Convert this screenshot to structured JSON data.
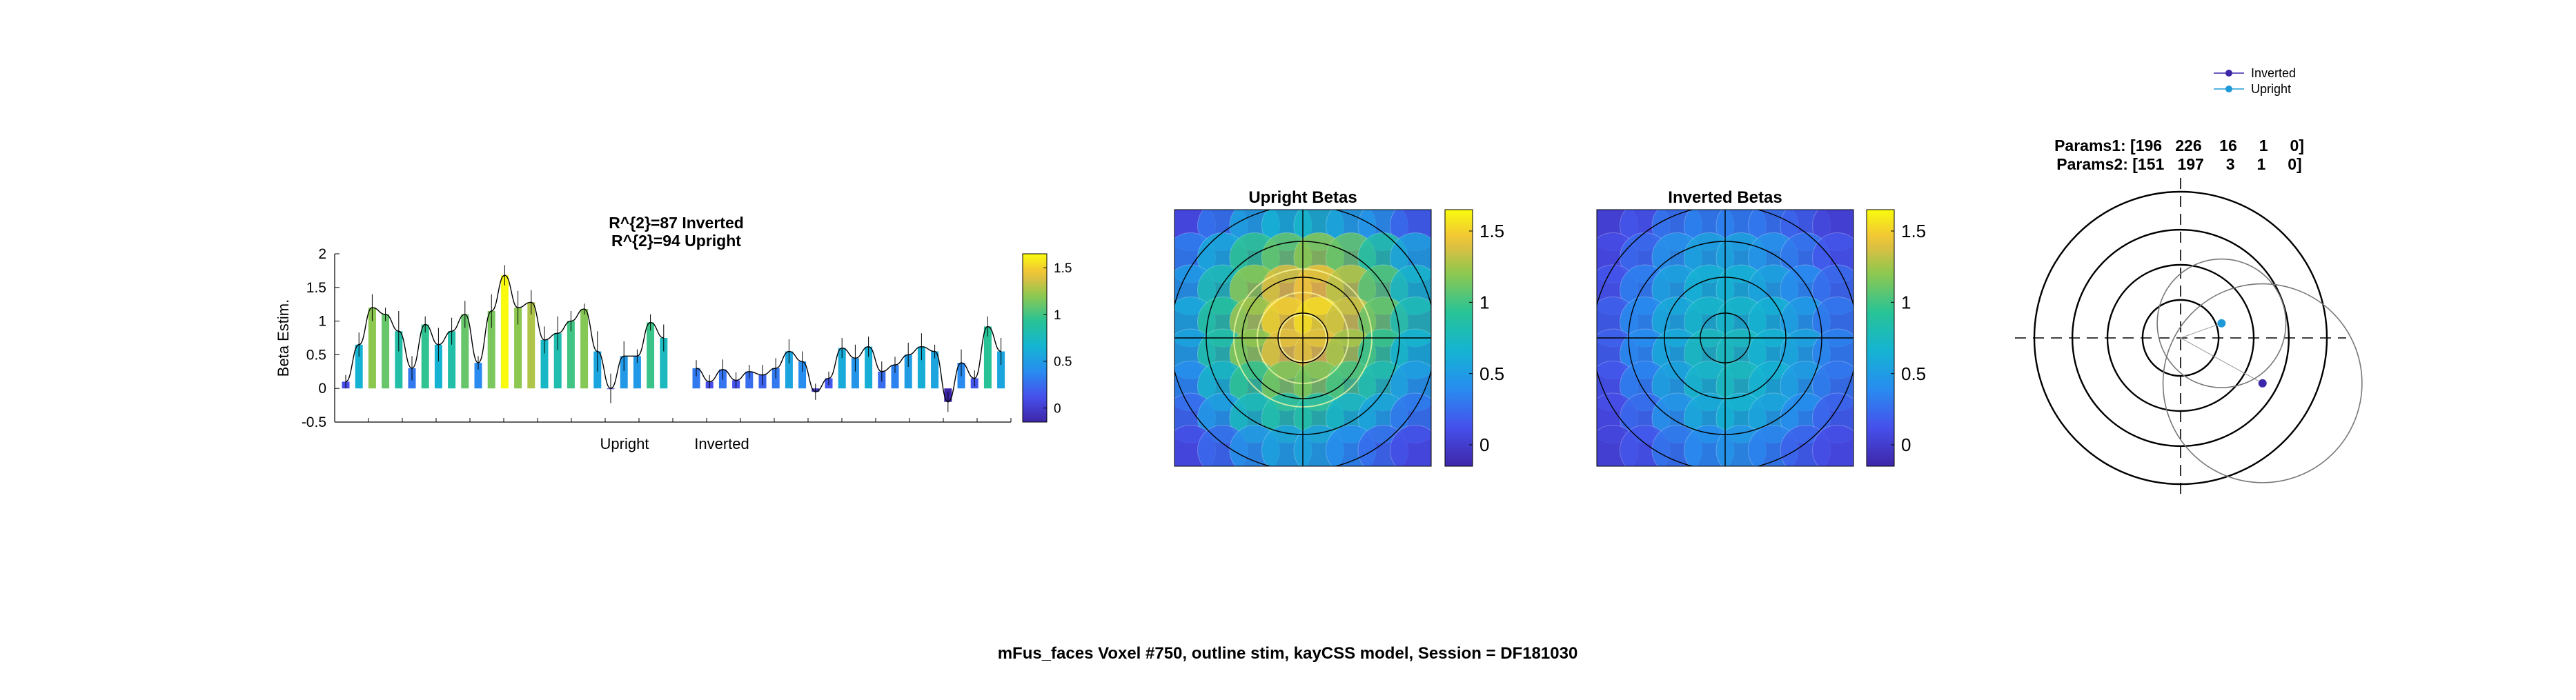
{
  "figure": {
    "suptitle": "mFus_faces Voxel #750, outline stim, kayCSS model, Session = DF181030"
  },
  "chart_data": [
    {
      "type": "bar",
      "title_lines": [
        "R^{2}=87 Inverted",
        "R^{2}=94 Upright"
      ],
      "ylabel": "Beta Estim.",
      "ylim": [
        -0.5,
        2
      ],
      "yticks": [
        "2",
        "1.5",
        "1",
        "0.5",
        "0",
        "-0.5"
      ],
      "xlabels": [
        "Upright",
        "Inverted"
      ],
      "colorbar_ticks": [
        "1.5",
        "1",
        "0.5",
        "0"
      ],
      "colorbar_range": [
        -0.15,
        1.65
      ],
      "series": [
        {
          "values": [
            0.1,
            0.65,
            1.2,
            1.1,
            0.85,
            0.3,
            0.95,
            0.65,
            0.85,
            1.1,
            0.38,
            1.15,
            1.68,
            1.2,
            1.28,
            0.72,
            0.82,
            1.0,
            1.18,
            0.55,
            0.0,
            0.48,
            0.48,
            0.98,
            0.75
          ],
          "errors": [
            0.1,
            0.18,
            0.2,
            0.1,
            0.3,
            0.18,
            0.12,
            0.25,
            0.2,
            0.2,
            0.1,
            0.25,
            0.15,
            0.25,
            0.18,
            0.2,
            0.25,
            0.15,
            0.08,
            0.3,
            0.22,
            0.22,
            0.1,
            0.12,
            0.2
          ]
        },
        {
          "values": [
            0.3,
            0.1,
            0.28,
            0.12,
            0.25,
            0.2,
            0.3,
            0.55,
            0.4,
            -0.05,
            0.15,
            0.6,
            0.45,
            0.62,
            0.25,
            0.35,
            0.5,
            0.62,
            0.55,
            -0.2,
            0.38,
            0.15,
            0.92,
            0.55
          ],
          "errors": [
            0.12,
            0.1,
            0.15,
            0.12,
            0.1,
            0.15,
            0.15,
            0.18,
            0.15,
            0.12,
            0.1,
            0.15,
            0.2,
            0.15,
            0.15,
            0.12,
            0.18,
            0.2,
            0.1,
            0.15,
            0.2,
            0.12,
            0.15,
            0.2
          ]
        }
      ]
    },
    {
      "type": "heatmap",
      "title": "Upright Betas",
      "colorbar_ticks": [
        "1.5",
        "1",
        "0.5",
        "0"
      ],
      "colorbar_range": [
        -0.15,
        1.65
      ],
      "grid": [
        [
          0.1,
          0.3,
          0.55,
          0.65,
          0.7,
          0.55,
          0.45,
          0.2
        ],
        [
          0.35,
          0.6,
          0.95,
          1.1,
          1.2,
          1.1,
          0.85,
          0.55
        ],
        [
          0.5,
          0.8,
          1.2,
          1.4,
          1.45,
          1.3,
          1.05,
          0.7
        ],
        [
          0.6,
          0.9,
          1.25,
          1.5,
          1.55,
          1.35,
          1.1,
          0.8
        ],
        [
          0.55,
          0.85,
          1.2,
          1.4,
          1.4,
          1.25,
          0.95,
          0.65
        ],
        [
          0.4,
          0.7,
          0.95,
          1.15,
          1.15,
          1.0,
          0.8,
          0.5
        ],
        [
          0.25,
          0.5,
          0.75,
          0.85,
          0.85,
          0.7,
          0.55,
          0.3
        ],
        [
          0.1,
          0.25,
          0.45,
          0.55,
          0.55,
          0.4,
          0.25,
          0.1
        ]
      ]
    },
    {
      "type": "heatmap",
      "title": "Inverted Betas",
      "colorbar_ticks": [
        "1.5",
        "1",
        "0.5",
        "0"
      ],
      "colorbar_range": [
        -0.15,
        1.65
      ],
      "grid": [
        [
          0.05,
          0.15,
          0.3,
          0.35,
          0.35,
          0.3,
          0.2,
          0.05
        ],
        [
          0.1,
          0.25,
          0.45,
          0.55,
          0.55,
          0.45,
          0.3,
          0.15
        ],
        [
          0.15,
          0.35,
          0.55,
          0.65,
          0.65,
          0.55,
          0.4,
          0.25
        ],
        [
          0.2,
          0.4,
          0.6,
          0.7,
          0.7,
          0.65,
          0.5,
          0.3
        ],
        [
          0.2,
          0.4,
          0.6,
          0.75,
          0.75,
          0.65,
          0.55,
          0.35
        ],
        [
          0.15,
          0.35,
          0.55,
          0.7,
          0.75,
          0.65,
          0.5,
          0.3
        ],
        [
          0.1,
          0.25,
          0.45,
          0.6,
          0.65,
          0.55,
          0.4,
          0.2
        ],
        [
          0.05,
          0.15,
          0.3,
          0.4,
          0.45,
          0.35,
          0.2,
          0.1
        ]
      ]
    },
    {
      "type": "scatter",
      "title_lines": [
        "Params1: [196   226    16     1     0]",
        "Params2: [151   197     3     1     0]"
      ],
      "legend": [
        "Inverted",
        "Upright"
      ],
      "legend_colors": [
        "#3e26a8",
        "#1f9ad8"
      ],
      "legend_position": "top-right",
      "points": [
        {
          "series": "Inverted",
          "x": 0.56,
          "y": -0.31,
          "r": 0.68
        },
        {
          "series": "Upright",
          "x": 0.28,
          "y": 0.1,
          "r": 0.44
        }
      ]
    }
  ]
}
